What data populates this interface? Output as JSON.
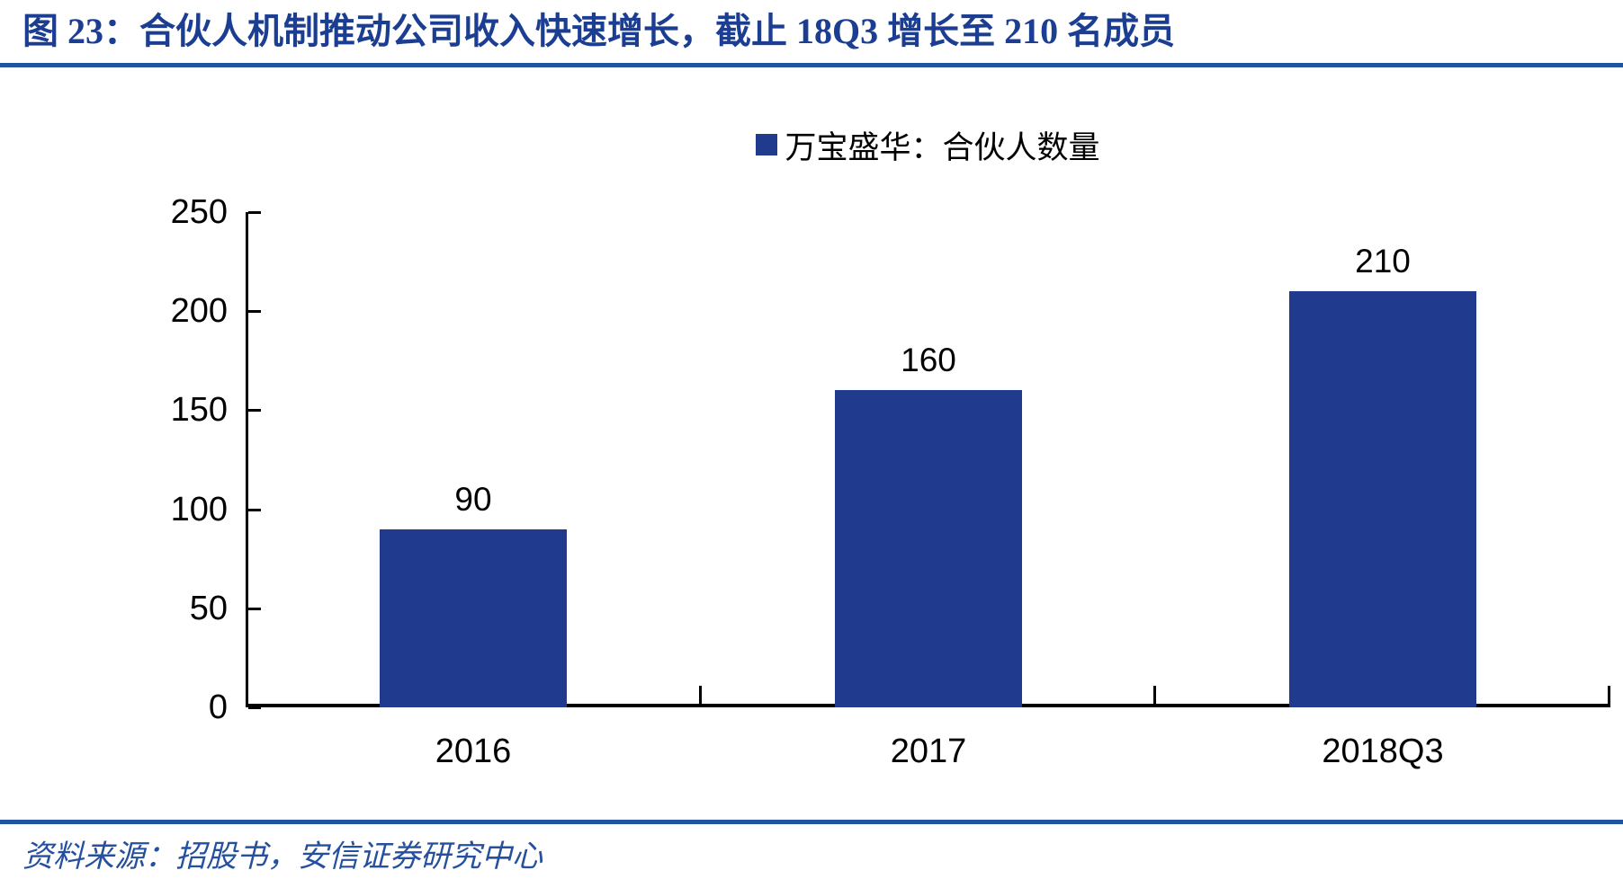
{
  "header": {
    "title": "图 23：合伙人机制推动公司收入快速增长，截止 18Q3 增长至 210 名成员"
  },
  "chart_data": {
    "type": "bar",
    "title": "图 23：合伙人机制推动公司收入快速增长，截止 18Q3 增长至 210 名成员",
    "categories": [
      "2016",
      "2017",
      "2018Q3"
    ],
    "series": [
      {
        "name": "万宝盛华：合伙人数量",
        "values": [
          90,
          160,
          210
        ]
      }
    ],
    "values": [
      90,
      160,
      210
    ],
    "data_labels": [
      "90",
      "160",
      "210"
    ],
    "xlabel": "",
    "ylabel": "",
    "ylim": [
      0,
      250
    ],
    "yticks": [
      0,
      50,
      100,
      150,
      200,
      250
    ],
    "grid": false,
    "legend": {
      "position": "top-center",
      "entries": [
        "万宝盛华：合伙人数量"
      ]
    },
    "bar_color": "#203A8E"
  },
  "footer": {
    "source": "资料来源：招股书，安信证券研究中心"
  },
  "colors": {
    "bar": "#203A8E",
    "title_text": "#1B3E92",
    "rule": "#2153A0",
    "source_text": "#24509E",
    "axis": "#000000",
    "label_text": "#000000"
  }
}
